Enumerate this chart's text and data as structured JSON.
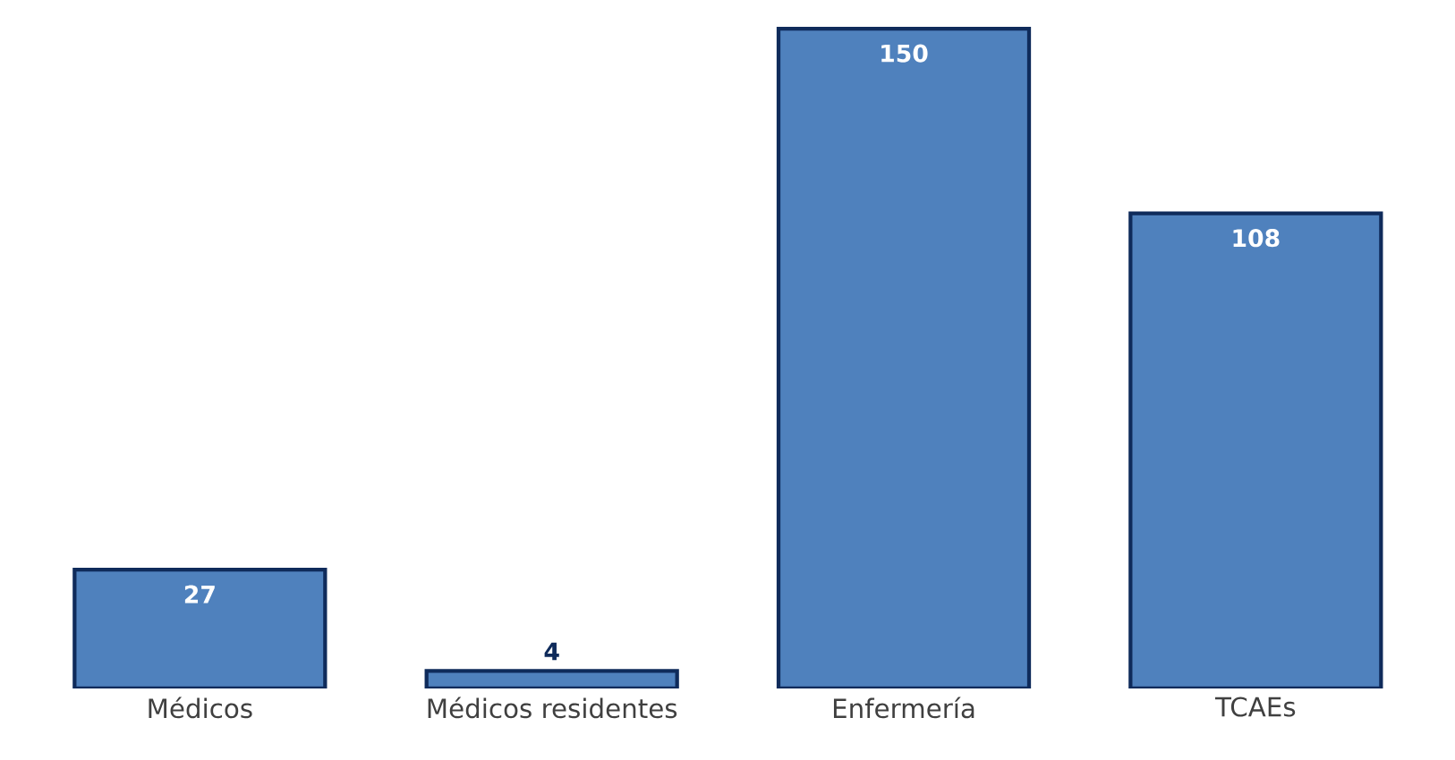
{
  "chart_data": {
    "type": "bar",
    "categories": [
      "Médicos",
      "Médicos residentes",
      "Enfermería",
      "TCAEs"
    ],
    "values": [
      27,
      4,
      150,
      108
    ],
    "color": "#4f81bd",
    "data_labels": true
  }
}
